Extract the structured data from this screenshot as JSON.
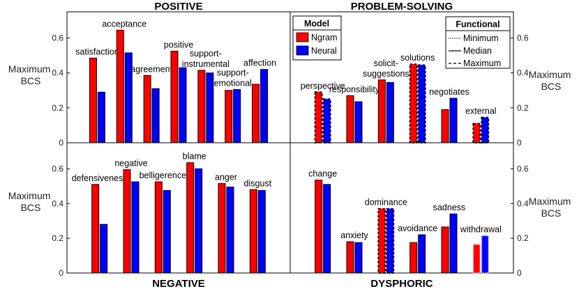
{
  "chart_data": {
    "type": "bar",
    "ylabel": "Maximum BCS",
    "ylabel_lines": [
      "Maximum",
      "BCS"
    ],
    "ylim": [
      0,
      0.75
    ],
    "yticks": [
      "0",
      "0.2",
      "0.4",
      "0.6"
    ],
    "colors": {
      "Ngram": "#ff0000",
      "Neural": "#0000ff"
    },
    "legend_model": {
      "title": "Model",
      "entries": [
        "Ngram",
        "Neural"
      ]
    },
    "legend_functional": {
      "title": "Functional",
      "entries": [
        "Minimum",
        "Median",
        "Maximum"
      ]
    },
    "panels": [
      {
        "title": "POSITIVE",
        "categories": [
          {
            "label": [
              "satisfaction"
            ],
            "ngram": 0.485,
            "neural": 0.29,
            "style": "median"
          },
          {
            "label": [
              "acceptance"
            ],
            "ngram": 0.645,
            "neural": 0.515,
            "style": "median"
          },
          {
            "label": [
              "agreement"
            ],
            "ngram": 0.385,
            "neural": 0.31,
            "style": "median"
          },
          {
            "label": [
              "positive"
            ],
            "ngram": 0.525,
            "neural": 0.43,
            "style": "median"
          },
          {
            "label": [
              "support-",
              "instrumental"
            ],
            "ngram": 0.415,
            "neural": 0.4,
            "style": "median"
          },
          {
            "label": [
              "support-",
              "emotional"
            ],
            "ngram": 0.3,
            "neural": 0.305,
            "style": "median"
          },
          {
            "label": [
              "affection"
            ],
            "ngram": 0.335,
            "neural": 0.42,
            "style": "median"
          }
        ]
      },
      {
        "title": "PROBLEM-SOLVING",
        "categories": [
          {
            "label": [
              "perspective"
            ],
            "ngram": 0.29,
            "neural": 0.25,
            "style": "maximum"
          },
          {
            "label": [
              "responsibility"
            ],
            "ngram": 0.27,
            "neural": 0.235,
            "style": "median"
          },
          {
            "label": [
              "solicit-",
              "suggestions"
            ],
            "ngram": 0.36,
            "neural": 0.345,
            "style": "median"
          },
          {
            "label": [
              "solutions"
            ],
            "ngram": 0.45,
            "neural": 0.445,
            "style": "maximum"
          },
          {
            "label": [
              "negotiates"
            ],
            "ngram": 0.19,
            "neural": 0.255,
            "style": "median"
          },
          {
            "label": [
              "external"
            ],
            "ngram": 0.11,
            "neural": 0.145,
            "style": "maximum"
          }
        ]
      },
      {
        "title": "NEGATIVE",
        "categories": [
          {
            "label": [
              "defensiveness"
            ],
            "ngram": 0.51,
            "neural": 0.28,
            "style": "median"
          },
          {
            "label": [
              "negative"
            ],
            "ngram": 0.595,
            "neural": 0.525,
            "style": "median"
          },
          {
            "label": [
              "belligerence"
            ],
            "ngram": 0.525,
            "neural": 0.475,
            "style": "median"
          },
          {
            "label": [
              "blame"
            ],
            "ngram": 0.635,
            "neural": 0.6,
            "style": "median"
          },
          {
            "label": [
              "anger"
            ],
            "ngram": 0.515,
            "neural": 0.495,
            "style": "median"
          },
          {
            "label": [
              "disgust"
            ],
            "ngram": 0.48,
            "neural": 0.475,
            "style": "median"
          }
        ]
      },
      {
        "title": "DYSPHORIC",
        "categories": [
          {
            "label": [
              "change"
            ],
            "ngram": 0.535,
            "neural": 0.51,
            "style": "median"
          },
          {
            "label": [
              "anxiety"
            ],
            "ngram": 0.18,
            "neural": 0.175,
            "style": "median"
          },
          {
            "label": [
              "dominance"
            ],
            "ngram": 0.37,
            "neural": 0.37,
            "style": "maximum"
          },
          {
            "label": [
              "avoidance"
            ],
            "ngram": 0.175,
            "neural": 0.22,
            "style": "median"
          },
          {
            "label": [
              "sadness"
            ],
            "ngram": 0.265,
            "neural": 0.34,
            "style": "median"
          },
          {
            "label": [
              "withdrawal"
            ],
            "ngram": 0.165,
            "neural": 0.215,
            "style": "minimum"
          }
        ]
      }
    ]
  }
}
